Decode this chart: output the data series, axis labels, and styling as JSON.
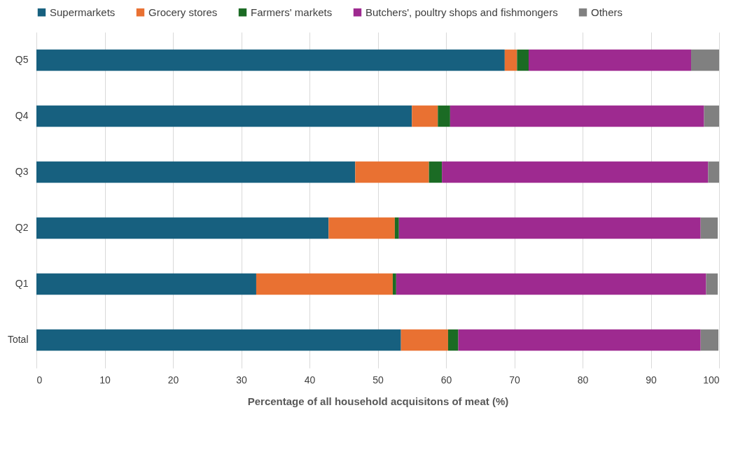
{
  "chart_data": {
    "type": "bar",
    "orientation": "horizontal",
    "stacked": true,
    "xlabel": "Percentage of all household acquisitons of meat (%)",
    "categories": [
      "Q5",
      "Q4",
      "Q3",
      "Q2",
      "Q1",
      "Total"
    ],
    "series": [
      {
        "name": "Supermarkets",
        "color": "#17607f",
        "values": [
          68.6,
          55.0,
          46.7,
          42.8,
          32.2,
          53.4
        ]
      },
      {
        "name": "Grocery stores",
        "color": "#e97132",
        "values": [
          1.8,
          3.8,
          10.8,
          9.7,
          20.0,
          6.9
        ]
      },
      {
        "name": "Farmers' markets",
        "color": "#1b6b24",
        "values": [
          1.7,
          1.8,
          1.9,
          0.6,
          0.5,
          1.5
        ]
      },
      {
        "name": "Butchers', poultry shops and fishmongers",
        "color": "#9e2a90",
        "values": [
          23.8,
          37.2,
          39.0,
          44.2,
          45.4,
          35.5
        ]
      },
      {
        "name": "Others",
        "color": "#808080",
        "values": [
          4.1,
          2.2,
          1.6,
          2.5,
          1.7,
          2.6
        ]
      }
    ],
    "xlim": [
      0,
      100
    ],
    "xticks": [
      0,
      10,
      20,
      30,
      40,
      50,
      60,
      70,
      80,
      90,
      100
    ],
    "grid": "x",
    "legend": "top"
  }
}
